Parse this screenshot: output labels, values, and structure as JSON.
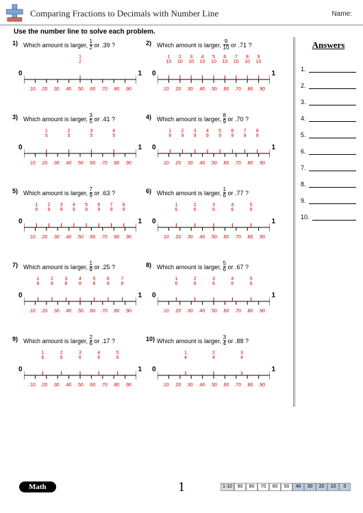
{
  "header": {
    "title": "Comparing Fractions to Decimals with Number Line",
    "name_label": "Name:",
    "icon_colors": {
      "plus": "#7aa7d6",
      "minus": "#cc6e5a"
    }
  },
  "instructions": "Use the number line to solve each problem.",
  "decimals": [
    ".10",
    ".20",
    ".30",
    ".40",
    ".50",
    ".60",
    ".70",
    ".80",
    ".90"
  ],
  "endpoints": {
    "zero": "0",
    "one": "1"
  },
  "colors": {
    "red": "#d00000",
    "text": "#111111",
    "rule": "#888888"
  },
  "problems": [
    {
      "num": "1)",
      "q_prefix": "Which amount is larger, ",
      "frac_n": "1",
      "frac_d": "2",
      "q_suffix": " or .39 ?",
      "top_den": "2",
      "top_count": 1
    },
    {
      "num": "2)",
      "q_prefix": "Which amount is larger, ",
      "frac_n": "9",
      "frac_d": "10",
      "q_suffix": " or .71 ?",
      "top_den": "10",
      "top_count": 9
    },
    {
      "num": "3)",
      "q_prefix": "Which amount is larger, ",
      "frac_n": "3",
      "frac_d": "5",
      "q_suffix": " or .41 ?",
      "top_den": "5",
      "top_count": 4
    },
    {
      "num": "4)",
      "q_prefix": "Which amount is larger, ",
      "frac_n": "8",
      "frac_d": "9",
      "q_suffix": " or .70 ?",
      "top_den": "9",
      "top_count": 8
    },
    {
      "num": "5)",
      "q_prefix": "Which amount is larger, ",
      "frac_n": "7",
      "frac_d": "9",
      "q_suffix": " or .63 ?",
      "top_den": "9",
      "top_count": 8
    },
    {
      "num": "6)",
      "q_prefix": "Which amount is larger, ",
      "frac_n": "1",
      "frac_d": "6",
      "q_suffix": " or .77 ?",
      "top_den": "6",
      "top_count": 5
    },
    {
      "num": "7)",
      "q_prefix": "Which amount is larger, ",
      "frac_n": "1",
      "frac_d": "8",
      "q_suffix": " or .25 ?",
      "top_den": "8",
      "top_count": 7
    },
    {
      "num": "8)",
      "q_prefix": "Which amount is larger, ",
      "frac_n": "5",
      "frac_d": "6",
      "q_suffix": " or .67 ?",
      "top_den": "6",
      "top_count": 5
    },
    {
      "num": "9)",
      "q_prefix": "Which amount is larger, ",
      "frac_n": "2",
      "frac_d": "6",
      "q_suffix": " or .17 ?",
      "top_den": "6",
      "top_count": 5
    },
    {
      "num": "10)",
      "q_prefix": "Which amount is larger, ",
      "frac_n": "3",
      "frac_d": "4",
      "q_suffix": " or .88 ?",
      "top_den": "4",
      "top_count": 3
    }
  ],
  "answers": {
    "title": "Answers",
    "count": 10
  },
  "footer": {
    "math_label": "Math",
    "page_num": "1",
    "score_label": "1-10",
    "scores": [
      "90",
      "80",
      "70",
      "60",
      "50",
      "40",
      "30",
      "20",
      "10",
      "0"
    ],
    "shaded_from": 5
  }
}
